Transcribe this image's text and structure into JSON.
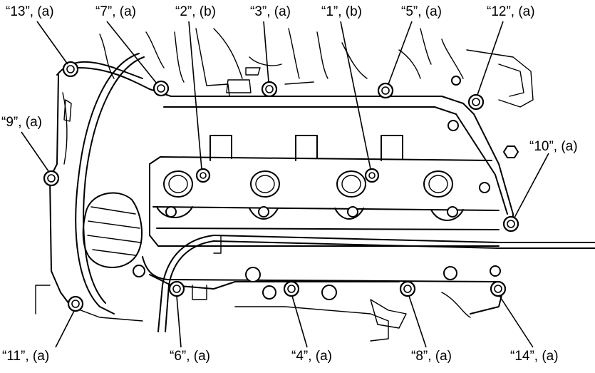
{
  "callouts": [
    {
      "id": "13",
      "text": "“13”, (a)"
    },
    {
      "id": "7",
      "text": "“7”, (a)"
    },
    {
      "id": "2",
      "text": "“2”, (b)"
    },
    {
      "id": "3",
      "text": "“3”, (a)"
    },
    {
      "id": "1",
      "text": "“1”, (b)"
    },
    {
      "id": "5",
      "text": "“5”, (a)"
    },
    {
      "id": "12",
      "text": "“12”, (a)"
    },
    {
      "id": "9",
      "text": "“9”, (a)"
    },
    {
      "id": "10",
      "text": "“10”, (a)"
    },
    {
      "id": "11",
      "text": "“11”, (a)"
    },
    {
      "id": "6",
      "text": "“6”, (a)"
    },
    {
      "id": "4",
      "text": "“4”, (a)"
    },
    {
      "id": "8",
      "text": "“8”, (a)"
    },
    {
      "id": "14",
      "text": "“14”, (a)"
    }
  ]
}
